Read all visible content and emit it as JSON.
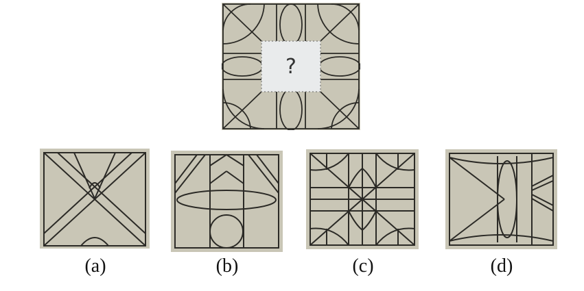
{
  "puzzle": {
    "question_mark": "?",
    "options": [
      {
        "id": "a",
        "caption": "(a)"
      },
      {
        "id": "b",
        "caption": "(b)"
      },
      {
        "id": "c",
        "caption": "(c)"
      },
      {
        "id": "d",
        "caption": "(d)"
      }
    ]
  },
  "colors": {
    "figure_background": "#c9c6b6",
    "line": "#2b2a26",
    "missing_tile": "#e9ebec",
    "page_background": "#ffffff"
  }
}
